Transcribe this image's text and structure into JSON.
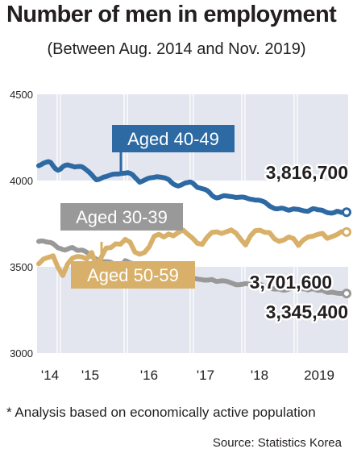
{
  "title": "Number of men in employment",
  "subtitle": "(Between Aug. 2014 and Nov. 2019)",
  "footnote": "* Analysis based on economically active population",
  "source": "Source: Statistics Korea",
  "colors": {
    "aged_40_49": "#2d6aa4",
    "aged_30_39": "#999999",
    "aged_50_59": "#d9b069",
    "band": "#e3e6ef",
    "grid": "#ffffff",
    "label_text": "#ffffff",
    "value_text": "#231f20"
  },
  "chart_data": {
    "type": "line",
    "title": "Number of men in employment",
    "subtitle": "(Between Aug. 2014 and Nov. 2019)",
    "x_tick_labels": [
      "'14",
      "'15",
      "'16",
      "'17",
      "'18",
      "2019"
    ],
    "y_ticks": [
      3000,
      3500,
      4000,
      4500
    ],
    "ylim": [
      3000,
      4500
    ],
    "grid": false,
    "series": [
      {
        "name": "Aged 40-49",
        "color": "#2d6aa4",
        "end_label": "3,816,700",
        "x": [
          0.0,
          0.5,
          1.0,
          1.5,
          2.0,
          2.5,
          3.0,
          3.5,
          4.0,
          4.5,
          5.0,
          5.5,
          6.0,
          6.5,
          7.0,
          7.5,
          8.0,
          8.5,
          9.0,
          9.5,
          10.0,
          10.5,
          11.0,
          11.5,
          12.0,
          12.5,
          13.0,
          13.5,
          14.0,
          14.5,
          15.0,
          15.5,
          16.0,
          16.5,
          17.0,
          17.5,
          18.0,
          18.5,
          19.0,
          19.5,
          20.0,
          20.5,
          21.0,
          21.5,
          22.0,
          22.5,
          23.0,
          23.5,
          24.0,
          24.5,
          25.0,
          25.5,
          26.0,
          26.5,
          27.0,
          27.5,
          28.0,
          28.5,
          29.0,
          29.5,
          30.0,
          30.5,
          31.0,
          31.5,
          32.0,
          32.5,
          33.0,
          33.5,
          34.0,
          34.5,
          35.0,
          35.5,
          36.0,
          36.5,
          37.0,
          37.5,
          38.0,
          38.5,
          39.0,
          39.5,
          40.0,
          40.5,
          41.0,
          41.5,
          42.0,
          42.5,
          43.0,
          43.5,
          44.0,
          44.5,
          45.0,
          45.5,
          46.0,
          46.5,
          47.0,
          47.5,
          48.0,
          48.5,
          49.0,
          49.5,
          50.0,
          50.5,
          51.0,
          51.5,
          52.0,
          52.5,
          53.0,
          53.5,
          54.0,
          54.5,
          55.0,
          55.5,
          56.0,
          56.5,
          57.0,
          57.5,
          58.0,
          58.5,
          59.0,
          59.5,
          60.0,
          60.5,
          61.0,
          61.5,
          62.0,
          62.5,
          63.0,
          63.5,
          64.0
        ],
        "values": [
          4086,
          4092,
          4101,
          4106,
          4110,
          4105,
          4085,
          4068,
          4060,
          4066,
          4080,
          4088,
          4091,
          4087,
          4083,
          4079,
          4081,
          4082,
          4080,
          4071,
          4060,
          4048,
          4034,
          4018,
          4004,
          4007,
          4013,
          4020,
          4023,
          4028,
          4033,
          4037,
          4038,
          4038,
          4040,
          4042,
          4043,
          4046,
          4042,
          4034,
          4019,
          4004,
          3990,
          3996,
          4003,
          4010,
          4015,
          4017,
          4019,
          4022,
          4021,
          4019,
          4017,
          4012,
          4006,
          3992,
          3980,
          3973,
          3968,
          3973,
          3980,
          3986,
          3989,
          3992,
          3986,
          3973,
          3960,
          3957,
          3953,
          3949,
          3943,
          3931,
          3915,
          3904,
          3899,
          3902,
          3908,
          3912,
          3911,
          3909,
          3907,
          3905,
          3902,
          3903,
          3904,
          3904,
          3901,
          3896,
          3892,
          3890,
          3887,
          3887,
          3885,
          3881,
          3875,
          3864,
          3852,
          3845,
          3838,
          3836,
          3838,
          3840,
          3838,
          3832,
          3828,
          3832,
          3836,
          3834,
          3833,
          3829,
          3825,
          3823,
          3822,
          3830,
          3837,
          3835,
          3831,
          3830,
          3827,
          3820,
          3814,
          3812,
          3811,
          3815,
          3822,
          3819,
          3815,
          3817,
          3816.7
        ]
      },
      {
        "name": "Aged 30-39",
        "color": "#999999",
        "end_label": "3,345,400",
        "x": [
          0.0,
          0.5,
          1.0,
          1.5,
          2.0,
          2.5,
          3.0,
          3.5,
          4.0,
          4.5,
          5.0,
          5.5,
          6.0,
          6.5,
          7.0,
          7.5,
          8.0,
          8.5,
          9.0,
          9.5,
          10.0,
          10.5,
          11.0,
          11.5,
          12.0,
          12.5,
          13.0,
          13.5,
          14.0,
          14.5,
          15.0,
          15.5,
          16.0,
          16.5,
          17.0,
          17.5,
          18.0,
          18.5,
          19.0,
          19.5,
          20.0,
          20.5,
          21.0,
          21.5,
          22.0,
          22.5,
          23.0,
          23.5,
          24.0,
          24.5,
          25.0,
          25.5,
          26.0,
          26.5,
          27.0,
          27.5,
          28.0,
          28.5,
          29.0,
          29.5,
          30.0,
          30.5,
          31.0,
          31.5,
          32.0,
          32.5,
          33.0,
          33.5,
          34.0,
          34.5,
          35.0,
          35.5,
          36.0,
          36.5,
          37.0,
          37.5,
          38.0,
          38.5,
          39.0,
          39.5,
          40.0,
          40.5,
          41.0,
          41.5,
          42.0,
          42.5,
          43.0,
          43.5,
          44.0,
          44.5,
          45.0,
          45.5,
          46.0,
          46.5,
          47.0,
          47.5,
          48.0,
          48.5,
          49.0,
          49.5,
          50.0,
          50.5,
          51.0,
          51.5,
          52.0,
          52.5,
          53.0,
          53.5,
          54.0,
          54.5,
          55.0,
          55.5,
          56.0,
          56.5,
          57.0,
          57.5,
          58.0,
          58.5,
          59.0,
          59.5,
          60.0,
          60.5,
          61.0,
          61.5,
          62.0,
          62.5,
          63.0,
          63.5,
          64.0
        ],
        "values": [
          3647,
          3650,
          3649,
          3645,
          3642,
          3641,
          3634,
          3622,
          3610,
          3606,
          3600,
          3597,
          3603,
          3609,
          3612,
          3604,
          3596,
          3596,
          3597,
          3592,
          3584,
          3572,
          3560,
          3552,
          3544,
          3539,
          3532,
          3530,
          3530,
          3529,
          3526,
          3518,
          3510,
          3506,
          3501,
          3518,
          3536,
          3530,
          3523,
          3520,
          3516,
          3510,
          3502,
          3499,
          3496,
          3494,
          3493,
          3486,
          3479,
          3486,
          3494,
          3492,
          3489,
          3485,
          3480,
          3470,
          3460,
          3474,
          3488,
          3474,
          3460,
          3453,
          3447,
          3442,
          3436,
          3432,
          3429,
          3427,
          3425,
          3423,
          3423,
          3424,
          3426,
          3420,
          3415,
          3417,
          3419,
          3418,
          3417,
          3412,
          3407,
          3402,
          3396,
          3396,
          3397,
          3400,
          3403,
          3401,
          3398,
          3398,
          3399,
          3399,
          3399,
          3393,
          3387,
          3383,
          3378,
          3374,
          3371,
          3371,
          3371,
          3367,
          3364,
          3367,
          3370,
          3375,
          3380,
          3375,
          3370,
          3371,
          3373,
          3370,
          3366,
          3370,
          3373,
          3368,
          3363,
          3364,
          3365,
          3358,
          3352,
          3352,
          3353,
          3350,
          3347,
          3346,
          3346,
          3346,
          3345.4
        ]
      },
      {
        "name": "Aged 50-59",
        "color": "#d9b069",
        "end_label": "3,701,600",
        "x": [
          0.0,
          0.5,
          1.0,
          1.5,
          2.0,
          2.5,
          3.0,
          3.5,
          4.0,
          4.5,
          5.0,
          5.5,
          6.0,
          6.5,
          7.0,
          7.5,
          8.0,
          8.5,
          9.0,
          9.5,
          10.0,
          10.5,
          11.0,
          11.5,
          12.0,
          12.5,
          13.0,
          13.5,
          14.0,
          14.5,
          15.0,
          15.5,
          16.0,
          16.5,
          17.0,
          17.5,
          18.0,
          18.5,
          19.0,
          19.5,
          20.0,
          20.5,
          21.0,
          21.5,
          22.0,
          22.5,
          23.0,
          23.5,
          24.0,
          24.5,
          25.0,
          25.5,
          26.0,
          26.5,
          27.0,
          27.5,
          28.0,
          28.5,
          29.0,
          29.5,
          30.0,
          30.5,
          31.0,
          31.5,
          32.0,
          32.5,
          33.0,
          33.5,
          34.0,
          34.5,
          35.0,
          35.5,
          36.0,
          36.5,
          37.0,
          37.5,
          38.0,
          38.5,
          39.0,
          39.5,
          40.0,
          40.5,
          41.0,
          41.5,
          42.0,
          42.5,
          43.0,
          43.5,
          44.0,
          44.5,
          45.0,
          45.5,
          46.0,
          46.5,
          47.0,
          47.5,
          48.0,
          48.5,
          49.0,
          49.5,
          50.0,
          50.5,
          51.0,
          51.5,
          52.0,
          52.5,
          53.0,
          53.5,
          54.0,
          54.5,
          55.0,
          55.5,
          56.0,
          56.5,
          57.0,
          57.5,
          58.0,
          58.5,
          59.0,
          59.5,
          60.0,
          60.5,
          61.0,
          61.5,
          62.0,
          62.5,
          63.0,
          63.5,
          64.0
        ],
        "values": [
          3517,
          3531,
          3545,
          3550,
          3554,
          3559,
          3564,
          3530,
          3497,
          3473,
          3449,
          3482,
          3516,
          3533,
          3550,
          3555,
          3560,
          3559,
          3557,
          3551,
          3545,
          3564,
          3583,
          3546,
          3508,
          3531,
          3555,
          3582,
          3609,
          3610,
          3611,
          3622,
          3633,
          3632,
          3631,
          3645,
          3659,
          3651,
          3643,
          3614,
          3585,
          3579,
          3573,
          3578,
          3583,
          3600,
          3617,
          3647,
          3677,
          3683,
          3689,
          3681,
          3673,
          3681,
          3690,
          3685,
          3679,
          3689,
          3699,
          3706,
          3713,
          3701,
          3689,
          3677,
          3666,
          3651,
          3636,
          3633,
          3630,
          3651,
          3671,
          3685,
          3699,
          3701,
          3703,
          3698,
          3693,
          3698,
          3703,
          3708,
          3714,
          3705,
          3696,
          3678,
          3660,
          3643,
          3626,
          3652,
          3678,
          3694,
          3709,
          3711,
          3712,
          3706,
          3700,
          3699,
          3698,
          3680,
          3662,
          3654,
          3647,
          3652,
          3656,
          3665,
          3673,
          3668,
          3663,
          3644,
          3624,
          3640,
          3655,
          3664,
          3673,
          3675,
          3677,
          3683,
          3688,
          3691,
          3694,
          3679,
          3665,
          3670,
          3675,
          3681,
          3687,
          3696,
          3704,
          3703,
          3701.6
        ]
      }
    ]
  }
}
